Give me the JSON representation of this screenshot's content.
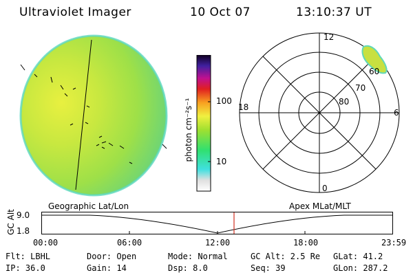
{
  "header": {
    "instrument": "Ultraviolet Imager",
    "date": "10 Oct 07",
    "time": "13:10:37 UT"
  },
  "colorbar": {
    "label": "photon cm⁻²s⁻¹",
    "tick_100": "100",
    "tick_10": "10"
  },
  "polar_plot": {
    "top": "12",
    "bottom": "0",
    "left": "18",
    "right": "6",
    "ring_60": "60",
    "ring_70": "70",
    "ring_80": "80"
  },
  "timeline": {
    "left_title": "Geographic Lat/Lon",
    "right_title": "Apex MLat/MLT",
    "axis_label": "GC Alt",
    "y_max": "9.0",
    "y_min": "1.8",
    "t0": "00:00",
    "t1": "06:00",
    "t2": "12:00",
    "t3": "18:00",
    "t4": "23:59"
  },
  "status": {
    "flt": "Flt: LBHL",
    "ip": "IP: 36.0",
    "door": "Door: Open",
    "gain": "Gain: 14",
    "mode": "Mode: Normal",
    "dsp": "Dsp:    8.0",
    "gcalt": "GC Alt: 2.5 Re",
    "seq": "Seq: 39",
    "glat": "GLat:  41.2",
    "glon": "GLon: 287.2"
  },
  "colors": {
    "disk": "#b8e040",
    "disk_edge": "#58d8c8",
    "marker": "#d03020"
  }
}
